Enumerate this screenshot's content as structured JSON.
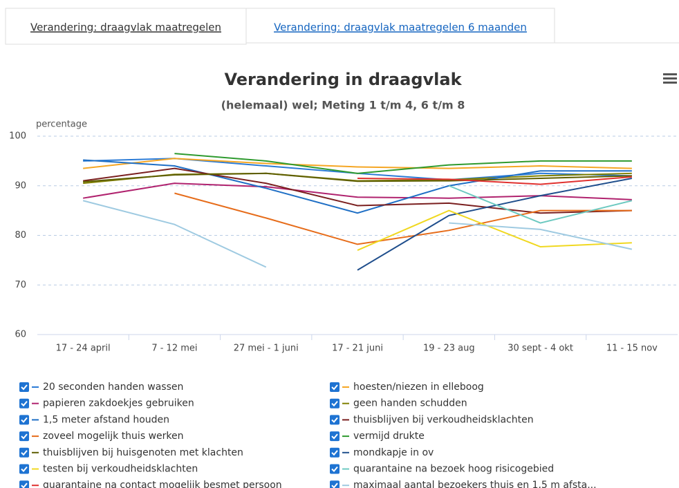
{
  "tabs": [
    "Verandering: draagvlak maatregelen",
    "Verandering: draagvlak maatregelen 6 maanden"
  ],
  "chart_data": {
    "type": "line",
    "title": "Verandering in draagvlak",
    "subtitle": "(helemaal) wel; Meting 1 t/m 4, 6 t/m 8",
    "y_label": "percentage",
    "categories": [
      "17 - 24 april",
      "7 - 12 mei",
      "27 mei - 1 juni",
      "17 - 21 juni",
      "19 - 23 aug",
      "30 sept - 4 okt",
      "11 - 15 nov"
    ],
    "ylim": [
      60,
      100
    ],
    "yticks": [
      60,
      70,
      80,
      90,
      100
    ],
    "grid": true,
    "series": [
      {
        "name": "20 seconden handen wassen",
        "color": "#2b7bd6",
        "values": [
          95,
          95.5,
          94,
          92.5,
          91.2,
          92.5,
          92
        ]
      },
      {
        "name": "hoesten/niezen in elleboog",
        "color": "#f5a623",
        "values": [
          93.5,
          95.5,
          94.5,
          93.8,
          93.5,
          94,
          93.5
        ]
      },
      {
        "name": "papieren zakdoekjes gebruiken",
        "color": "#b0226e",
        "values": [
          87.5,
          90.5,
          89.8,
          87.7,
          87.5,
          88,
          87.2
        ]
      },
      {
        "name": "geen handen schudden",
        "color": "#808000",
        "values": [
          90.5,
          92.3,
          92.5,
          91,
          91.2,
          92,
          92.5
        ]
      },
      {
        "name": "1,5 meter afstand houden",
        "color": "#1f6fc5",
        "values": [
          95.2,
          94,
          89.5,
          84.5,
          90,
          93,
          93
        ]
      },
      {
        "name": "thuisblijven bij verkoudheidsklachten",
        "color": "#7a1f1f",
        "values": [
          91,
          93.5,
          90.5,
          86,
          86.5,
          84.5,
          85
        ]
      },
      {
        "name": "zoveel mogelijk thuis werken",
        "color": "#e66c1a",
        "values": [
          null,
          88.5,
          83.5,
          78.2,
          81,
          85,
          85
        ]
      },
      {
        "name": "vermijd drukte",
        "color": "#2e9a2e",
        "values": [
          null,
          96.5,
          95,
          92.5,
          94.2,
          95,
          95
        ]
      },
      {
        "name": "thuisblijven bij huisgenoten met klachten",
        "color": "#5e5e00",
        "values": [
          90.8,
          92.2,
          92.5,
          90.9,
          91,
          91.5,
          92
        ]
      },
      {
        "name": "mondkapje in ov",
        "color": "#1f4e8c",
        "values": [
          null,
          null,
          null,
          73,
          84,
          88,
          91.5
        ]
      },
      {
        "name": "testen bij verkoudheidsklachten",
        "color": "#f0d820",
        "values": [
          null,
          null,
          null,
          77,
          85,
          77.7,
          78.5
        ]
      },
      {
        "name": "quarantaine na bezoek hoog risicogebied",
        "color": "#6cc9c0",
        "values": [
          null,
          null,
          null,
          null,
          90,
          82.5,
          87
        ]
      },
      {
        "name": "quarantaine na contact mogelijk besmet persoon",
        "color": "#e0312f",
        "values": [
          null,
          null,
          null,
          91.5,
          91.3,
          90.3,
          91.8
        ]
      },
      {
        "name": "maximaal aantal bezoekers thuis en 1,5 m afsta...",
        "color": "#9ecae1",
        "values": [
          87,
          82.2,
          73.6,
          null,
          82.5,
          81.2,
          77.2
        ]
      }
    ]
  }
}
